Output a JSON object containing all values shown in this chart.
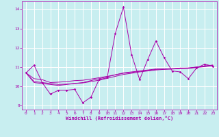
{
  "xlabel": "Windchill (Refroidissement éolien,°C)",
  "bg_color": "#c8eef0",
  "grid_color": "#ffffff",
  "line_color": "#aa00aa",
  "xlim": [
    -0.5,
    23.5
  ],
  "ylim": [
    8.8,
    14.4
  ],
  "yticks": [
    9,
    10,
    11,
    12,
    13,
    14
  ],
  "xticks": [
    0,
    1,
    2,
    3,
    4,
    5,
    6,
    7,
    8,
    9,
    10,
    11,
    12,
    13,
    14,
    15,
    16,
    17,
    18,
    19,
    20,
    21,
    22,
    23
  ],
  "series1": [
    10.7,
    11.1,
    10.2,
    9.6,
    9.8,
    9.8,
    9.85,
    9.15,
    9.45,
    10.35,
    10.45,
    12.75,
    14.1,
    11.65,
    10.35,
    11.4,
    12.35,
    11.5,
    10.8,
    10.75,
    10.4,
    10.95,
    11.15,
    11.05
  ],
  "series2": [
    10.7,
    10.2,
    10.15,
    10.1,
    10.05,
    10.1,
    10.15,
    10.2,
    10.3,
    10.4,
    10.5,
    10.6,
    10.7,
    10.75,
    10.8,
    10.85,
    10.9,
    10.9,
    10.9,
    10.95,
    10.95,
    11.0,
    11.05,
    11.1
  ],
  "series3": [
    10.7,
    10.25,
    10.2,
    10.15,
    10.1,
    10.12,
    10.15,
    10.18,
    10.25,
    10.32,
    10.42,
    10.52,
    10.62,
    10.68,
    10.75,
    10.8,
    10.85,
    10.88,
    10.9,
    10.92,
    10.93,
    10.98,
    11.02,
    11.08
  ],
  "series4": [
    10.7,
    10.4,
    10.35,
    10.2,
    10.22,
    10.25,
    10.3,
    10.32,
    10.38,
    10.45,
    10.52,
    10.6,
    10.68,
    10.72,
    10.78,
    10.82,
    10.88,
    10.9,
    10.92,
    10.94,
    10.95,
    11.0,
    11.06,
    11.1
  ]
}
